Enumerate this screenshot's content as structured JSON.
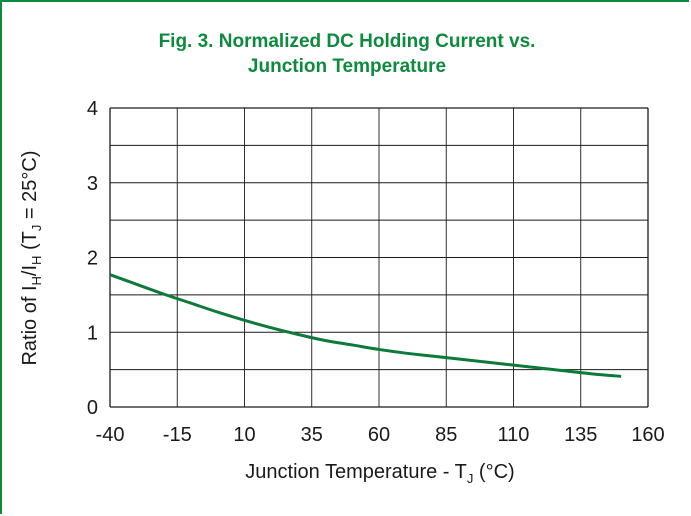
{
  "chart_data": {
    "type": "line",
    "title_line1": "Fig. 3. Normalized DC Holding Current vs.",
    "title_line2": "Junction Temperature",
    "xlabel": {
      "main": "Junction Temperature - T",
      "sub": "J",
      "tail": " (°C)"
    },
    "ylabel": {
      "p1": "Ratio of I",
      "s1": "H",
      "p2": "/I",
      "s2": "H",
      "p3": " (T",
      "s3": "J",
      "p4": " = 25°C)"
    },
    "x_ticks": [
      "-40",
      "-15",
      "10",
      "35",
      "60",
      "85",
      "110",
      "135",
      "160"
    ],
    "y_ticks": [
      "0",
      "1",
      "2",
      "3",
      "4"
    ],
    "xlim": [
      -40,
      160
    ],
    "ylim": [
      0,
      4
    ],
    "grid": true,
    "series": [
      {
        "color": "#0e7a3a",
        "x": [
          -40,
          -30,
          -20,
          -10,
          0,
          10,
          20,
          30,
          40,
          50,
          60,
          70,
          80,
          90,
          100,
          110,
          120,
          130,
          140,
          150
        ],
        "y": [
          1.77,
          1.64,
          1.51,
          1.39,
          1.27,
          1.16,
          1.06,
          0.97,
          0.89,
          0.83,
          0.77,
          0.72,
          0.68,
          0.64,
          0.6,
          0.56,
          0.52,
          0.48,
          0.44,
          0.41
        ]
      }
    ]
  },
  "colors": {
    "title": "#0e8a3e",
    "grid": "#1a1a1a",
    "frame": "#0e8a3e"
  }
}
